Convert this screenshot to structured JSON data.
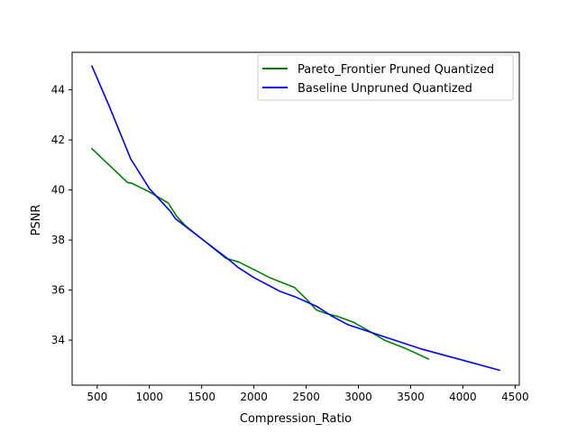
{
  "chart_data": {
    "type": "line",
    "title": "",
    "xlabel": "Compression_Ratio",
    "ylabel": "PSNR",
    "xlim": [
      260,
      4540
    ],
    "ylim": [
      32.2,
      45.5
    ],
    "xticks": [
      500,
      1000,
      1500,
      2000,
      2500,
      3000,
      3500,
      4000,
      4500
    ],
    "yticks": [
      34,
      36,
      38,
      40,
      42,
      44
    ],
    "grid": false,
    "legend_position": "upper right",
    "series": [
      {
        "name": "Pareto_Frontier Pruned Quantized",
        "color": "#008000",
        "x": [
          450,
          790,
          830,
          1000,
          1180,
          1260,
          1350,
          1530,
          1730,
          1850,
          2000,
          2150,
          2300,
          2390,
          2500,
          2600,
          2700,
          2800,
          2950,
          3100,
          3250,
          3450,
          3670
        ],
        "y": [
          41.65,
          40.3,
          40.27,
          39.92,
          39.48,
          38.95,
          38.55,
          37.95,
          37.27,
          37.13,
          36.82,
          36.5,
          36.25,
          36.1,
          35.65,
          35.2,
          35.05,
          34.95,
          34.72,
          34.37,
          34.0,
          33.67,
          33.25
        ]
      },
      {
        "name": "Baseline Unpruned Quantized",
        "color": "#0000ff",
        "x": [
          450,
          620,
          820,
          1000,
          1200,
          1250,
          1500,
          1750,
          1850,
          2000,
          2250,
          2400,
          2600,
          2750,
          2900,
          3200,
          3600,
          4000,
          4350
        ],
        "y": [
          44.95,
          43.3,
          41.25,
          40.05,
          39.15,
          38.85,
          38.05,
          37.25,
          36.9,
          36.5,
          35.95,
          35.72,
          35.35,
          34.95,
          34.62,
          34.2,
          33.65,
          33.2,
          32.8
        ]
      }
    ]
  }
}
